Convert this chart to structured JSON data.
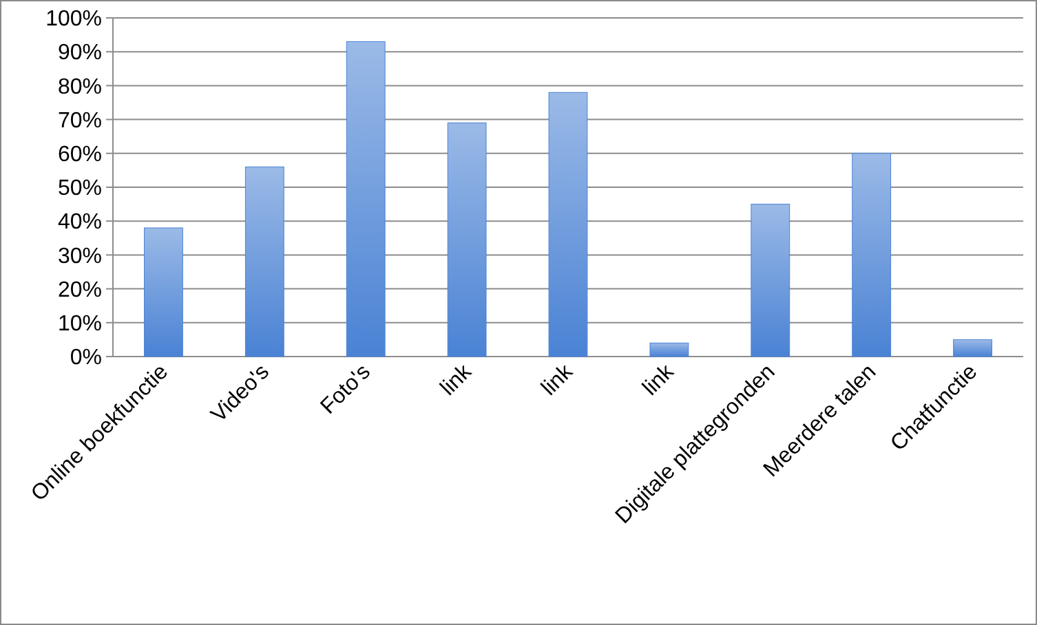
{
  "chart_data": {
    "type": "bar",
    "categories": [
      "Online boekfunctie",
      "Video's",
      "Foto's",
      "link",
      "link",
      "link",
      "Digitale plattegronden",
      "Meerdere talen",
      "Chatfunctie"
    ],
    "values": [
      38,
      56,
      93,
      69,
      78,
      4,
      45,
      60,
      5
    ],
    "color": "#4a82d4",
    "ylim": [
      0,
      100
    ],
    "yticks": [
      {
        "value": 0,
        "label": "0%"
      },
      {
        "value": 10,
        "label": "10%"
      },
      {
        "value": 20,
        "label": "20%"
      },
      {
        "value": 30,
        "label": "30%"
      },
      {
        "value": 40,
        "label": "40%"
      },
      {
        "value": 50,
        "label": "50%"
      },
      {
        "value": 60,
        "label": "60%"
      },
      {
        "value": 70,
        "label": "70%"
      },
      {
        "value": 80,
        "label": "80%"
      },
      {
        "value": 90,
        "label": "90%"
      },
      {
        "value": 100,
        "label": "100%"
      }
    ],
    "grid": "y"
  }
}
